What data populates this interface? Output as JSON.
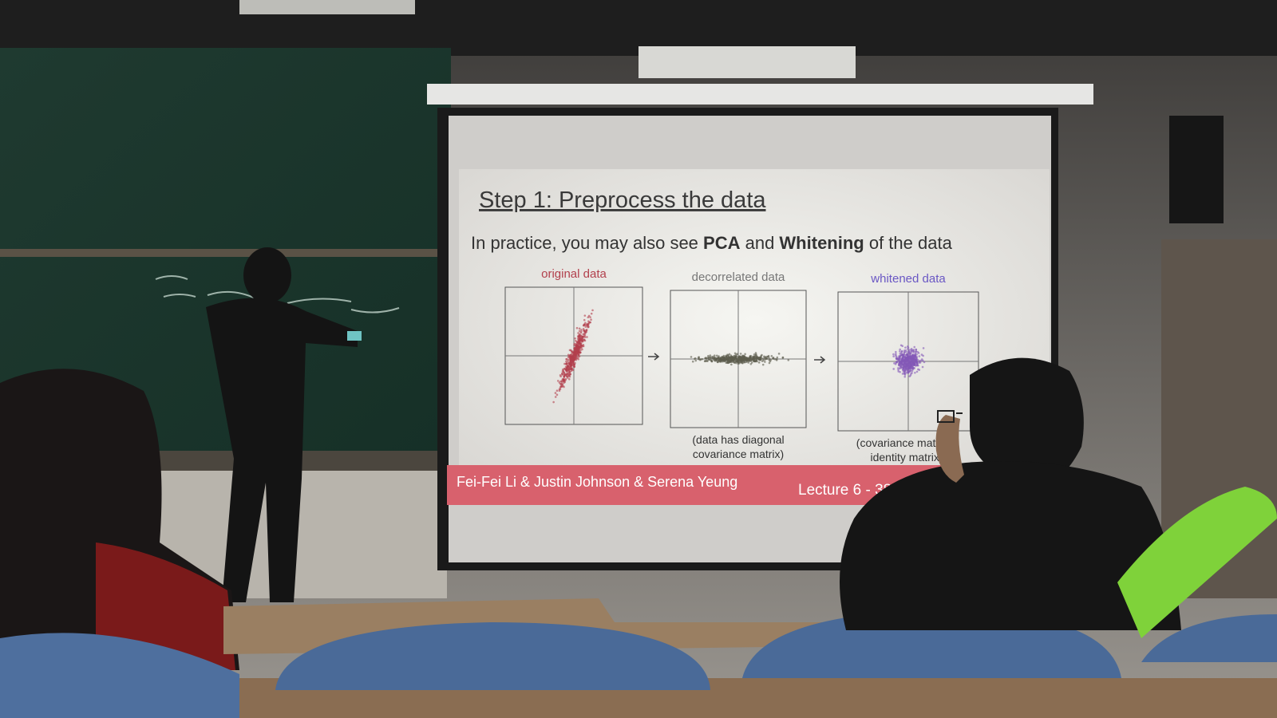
{
  "slide": {
    "title": "Step 1: Preprocess the data",
    "subtitle": [
      "In practice, you may also see ",
      "PCA",
      " and ",
      "Whitening",
      " of the data"
    ],
    "panels": [
      {
        "title": "original data"
      },
      {
        "title": "decorrelated data",
        "caption": [
          "(data has diagonal",
          "covariance matrix)"
        ]
      },
      {
        "title": "whitened data",
        "caption": [
          "(covariance matrix =",
          "identity matrix)"
        ]
      }
    ],
    "footer": {
      "authors": "Fei-Fei Li & Justin Johnson & Serena Yeung",
      "lecture": "Lecture 6 - 38"
    }
  }
}
